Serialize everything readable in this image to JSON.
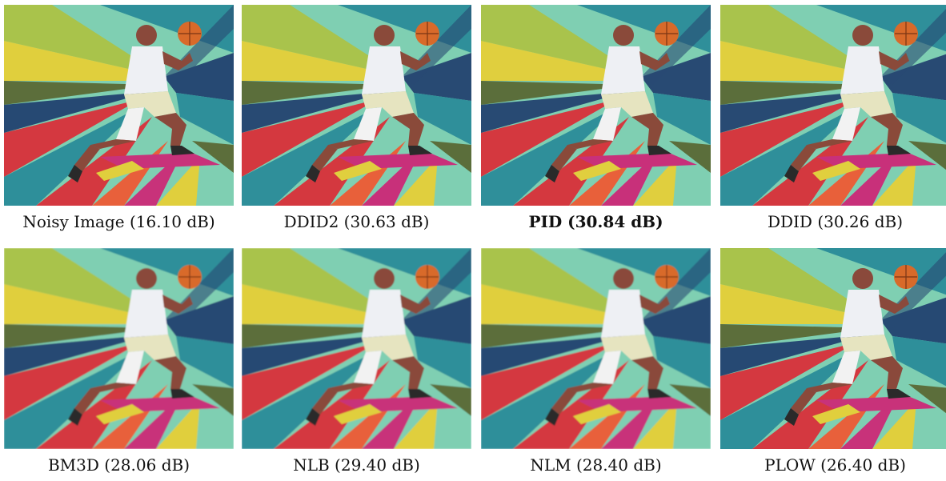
{
  "panels": [
    {
      "label": "Noisy Image (16.10 dB)",
      "method": "Noisy Image",
      "psnr_db": 16.1,
      "variant": "noisy",
      "bold": false
    },
    {
      "label": "DDID2 (30.63 dB)",
      "method": "DDID2",
      "psnr_db": 30.63,
      "variant": "clean",
      "bold": false
    },
    {
      "label": "PID (30.84 dB)",
      "method": "PID",
      "psnr_db": 30.84,
      "variant": "clean",
      "bold": true
    },
    {
      "label": "DDID (30.26 dB)",
      "method": "DDID",
      "psnr_db": 30.26,
      "variant": "clean",
      "bold": false
    },
    {
      "label": "BM3D (28.06 dB)",
      "method": "BM3D",
      "psnr_db": 28.06,
      "variant": "soft",
      "bold": false
    },
    {
      "label": "NLB (29.40 dB)",
      "method": "NLB",
      "psnr_db": 29.4,
      "variant": "soft",
      "bold": false
    },
    {
      "label": "NLM (28.40 dB)",
      "method": "NLM",
      "psnr_db": 28.4,
      "variant": "soft",
      "bold": false
    },
    {
      "label": "PLOW (26.40 dB)",
      "method": "PLOW",
      "psnr_db": 26.4,
      "variant": "textured",
      "bold": false
    }
  ],
  "colors": {
    "teal": "#2f8f9a",
    "dark_blue": "#284a73",
    "red": "#d4383f",
    "orange": "#e8603a",
    "yellow": "#e0cf3e",
    "lime": "#a9c34c",
    "mint": "#7fcfb2",
    "pink": "#c8307a",
    "olive": "#5b6e3b",
    "skin": "#8a4a3a",
    "jersey": "#eef0f4",
    "ball": "#d86a2a"
  }
}
